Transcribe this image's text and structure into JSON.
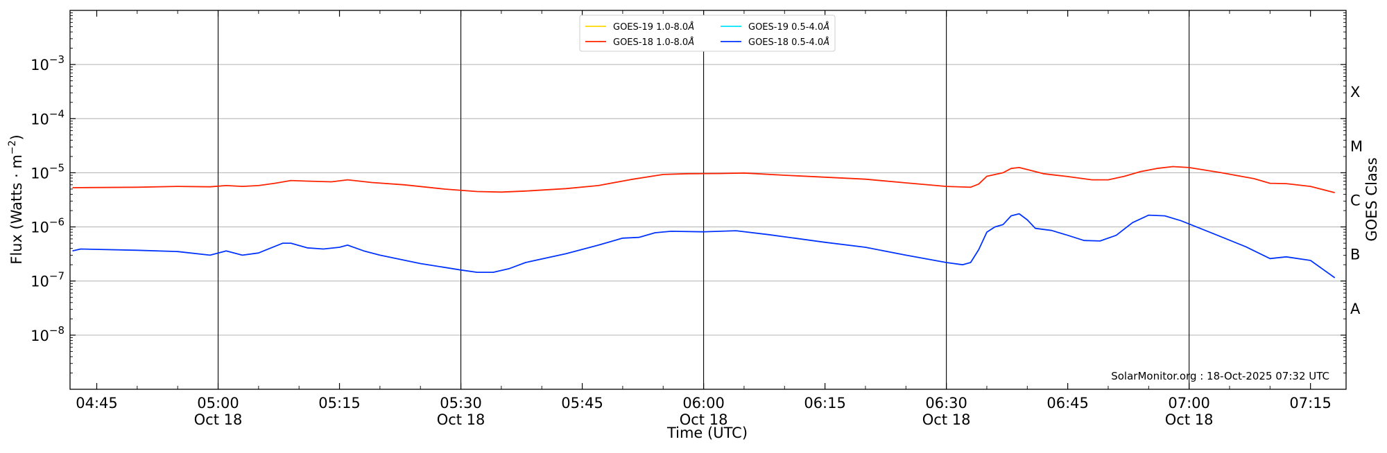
{
  "chart_data": {
    "type": "line",
    "title": "",
    "xlabel": "Time (UTC)",
    "ylabel": "Flux (Watts · m",
    "ylabel_superscript": "−2",
    "ylabel_suffix": ")",
    "y2label": "GOES Class",
    "yscale": "log",
    "ylim": [
      1e-09,
      0.01
    ],
    "xlim_minutes": [
      "04:42",
      "07:19"
    ],
    "grid": "horizontal major gridlines",
    "legend_position": "top-center",
    "x_ticks": [
      {
        "time": "04:45",
        "label": "04:45",
        "date": ""
      },
      {
        "time": "05:00",
        "label": "05:00",
        "date": "Oct 18"
      },
      {
        "time": "05:15",
        "label": "05:15",
        "date": ""
      },
      {
        "time": "05:30",
        "label": "05:30",
        "date": "Oct 18"
      },
      {
        "time": "05:45",
        "label": "05:45",
        "date": ""
      },
      {
        "time": "06:00",
        "label": "06:00",
        "date": "Oct 18"
      },
      {
        "time": "06:15",
        "label": "06:15",
        "date": ""
      },
      {
        "time": "06:30",
        "label": "06:30",
        "date": "Oct 18"
      },
      {
        "time": "06:45",
        "label": "06:45",
        "date": ""
      },
      {
        "time": "07:00",
        "label": "07:00",
        "date": "Oct 18"
      },
      {
        "time": "07:15",
        "label": "07:15",
        "date": ""
      }
    ],
    "vertical_lines": [
      "05:00",
      "05:30",
      "06:00",
      "06:30",
      "07:00"
    ],
    "y_ticks": [
      {
        "value": 1e-08,
        "base": "10",
        "exp": "−8"
      },
      {
        "value": 1e-07,
        "base": "10",
        "exp": "−7"
      },
      {
        "value": 1e-06,
        "base": "10",
        "exp": "−6"
      },
      {
        "value": 1e-05,
        "base": "10",
        "exp": "−5"
      },
      {
        "value": 0.0001,
        "base": "10",
        "exp": "−4"
      },
      {
        "value": 0.001,
        "base": "10",
        "exp": "−3"
      }
    ],
    "goes_classes": [
      {
        "label": "A",
        "value": 3.16e-08
      },
      {
        "label": "B",
        "value": 3.16e-07
      },
      {
        "label": "C",
        "value": 3.16e-06
      },
      {
        "label": "M",
        "value": 3.16e-05
      },
      {
        "label": "X",
        "value": 0.000316
      }
    ],
    "legend": [
      {
        "name": "GOES-19 1.0-8.0",
        "unit": "Å",
        "color": "#FFD700"
      },
      {
        "name": "GOES-18 1.0-8.0",
        "unit": "Å",
        "color": "#FF2200"
      },
      {
        "name": "GOES-19 0.5-4.0",
        "unit": "Å",
        "color": "#00E5FF"
      },
      {
        "name": "GOES-18 0.5-4.0",
        "unit": "Å",
        "color": "#0033FF"
      }
    ],
    "series": [
      {
        "name": "GOES-18 1.0-8.0Å",
        "color": "#FF2200",
        "points": [
          [
            "04:42",
            5.3e-06
          ],
          [
            "04:50",
            5.4e-06
          ],
          [
            "04:55",
            5.6e-06
          ],
          [
            "04:59",
            5.5e-06
          ],
          [
            "05:01",
            5.8e-06
          ],
          [
            "05:03",
            5.6e-06
          ],
          [
            "05:05",
            5.8e-06
          ],
          [
            "05:07",
            6.4e-06
          ],
          [
            "05:09",
            7.2e-06
          ],
          [
            "05:11",
            7e-06
          ],
          [
            "05:14",
            6.8e-06
          ],
          [
            "05:16",
            7.4e-06
          ],
          [
            "05:19",
            6.6e-06
          ],
          [
            "05:23",
            6e-06
          ],
          [
            "05:28",
            5e-06
          ],
          [
            "05:32",
            4.5e-06
          ],
          [
            "05:35",
            4.4e-06
          ],
          [
            "05:38",
            4.6e-06
          ],
          [
            "05:43",
            5.1e-06
          ],
          [
            "05:47",
            5.8e-06
          ],
          [
            "05:51",
            7.5e-06
          ],
          [
            "05:55",
            9.3e-06
          ],
          [
            "05:58",
            9.6e-06
          ],
          [
            "06:02",
            9.7e-06
          ],
          [
            "06:05",
            9.9e-06
          ],
          [
            "06:10",
            9e-06
          ],
          [
            "06:15",
            8.3e-06
          ],
          [
            "06:20",
            7.6e-06
          ],
          [
            "06:25",
            6.5e-06
          ],
          [
            "06:30",
            5.6e-06
          ],
          [
            "06:33",
            5.4e-06
          ],
          [
            "06:34",
            6.2e-06
          ],
          [
            "06:35",
            8.6e-06
          ],
          [
            "06:37",
            1e-05
          ],
          [
            "06:38",
            1.2e-05
          ],
          [
            "06:39",
            1.25e-05
          ],
          [
            "06:40",
            1.15e-05
          ],
          [
            "06:42",
            9.6e-06
          ],
          [
            "06:45",
            8.5e-06
          ],
          [
            "06:48",
            7.4e-06
          ],
          [
            "06:50",
            7.4e-06
          ],
          [
            "06:52",
            8.6e-06
          ],
          [
            "06:54",
            1.05e-05
          ],
          [
            "06:56",
            1.2e-05
          ],
          [
            "06:58",
            1.3e-05
          ],
          [
            "07:00",
            1.25e-05
          ],
          [
            "07:04",
            1e-05
          ],
          [
            "07:08",
            7.8e-06
          ],
          [
            "07:10",
            6.4e-06
          ],
          [
            "07:12",
            6.3e-06
          ],
          [
            "07:15",
            5.6e-06
          ],
          [
            "07:18",
            4.3e-06
          ]
        ]
      },
      {
        "name": "GOES-18 0.5-4.0Å",
        "color": "#0033FF",
        "points": [
          [
            "04:42",
            3.6e-07
          ],
          [
            "04:43",
            3.9e-07
          ],
          [
            "04:50",
            3.7e-07
          ],
          [
            "04:55",
            3.5e-07
          ],
          [
            "04:59",
            3e-07
          ],
          [
            "05:01",
            3.6e-07
          ],
          [
            "05:03",
            3e-07
          ],
          [
            "05:05",
            3.3e-07
          ],
          [
            "05:06",
            3.8e-07
          ],
          [
            "05:08",
            5e-07
          ],
          [
            "05:09",
            5e-07
          ],
          [
            "05:11",
            4.1e-07
          ],
          [
            "05:13",
            3.9e-07
          ],
          [
            "05:15",
            4.2e-07
          ],
          [
            "05:16",
            4.6e-07
          ],
          [
            "05:18",
            3.6e-07
          ],
          [
            "05:20",
            3e-07
          ],
          [
            "05:25",
            2.1e-07
          ],
          [
            "05:30",
            1.6e-07
          ],
          [
            "05:32",
            1.45e-07
          ],
          [
            "05:34",
            1.45e-07
          ],
          [
            "05:36",
            1.7e-07
          ],
          [
            "05:38",
            2.2e-07
          ],
          [
            "05:43",
            3.2e-07
          ],
          [
            "05:47",
            4.6e-07
          ],
          [
            "05:50",
            6.2e-07
          ],
          [
            "05:52",
            6.4e-07
          ],
          [
            "05:54",
            7.8e-07
          ],
          [
            "05:56",
            8.3e-07
          ],
          [
            "06:00",
            8.1e-07
          ],
          [
            "06:04",
            8.5e-07
          ],
          [
            "06:08",
            7.2e-07
          ],
          [
            "06:15",
            5.2e-07
          ],
          [
            "06:20",
            4.2e-07
          ],
          [
            "06:25",
            3e-07
          ],
          [
            "06:30",
            2.2e-07
          ],
          [
            "06:32",
            2e-07
          ],
          [
            "06:33",
            2.2e-07
          ],
          [
            "06:34",
            3.8e-07
          ],
          [
            "06:35",
            8e-07
          ],
          [
            "06:36",
            1e-06
          ],
          [
            "06:37",
            1.1e-06
          ],
          [
            "06:38",
            1.6e-06
          ],
          [
            "06:39",
            1.75e-06
          ],
          [
            "06:40",
            1.35e-06
          ],
          [
            "06:41",
            9.4e-07
          ],
          [
            "06:43",
            8.6e-07
          ],
          [
            "06:45",
            7e-07
          ],
          [
            "06:47",
            5.6e-07
          ],
          [
            "06:49",
            5.5e-07
          ],
          [
            "06:51",
            7e-07
          ],
          [
            "06:53",
            1.2e-06
          ],
          [
            "06:55",
            1.65e-06
          ],
          [
            "06:57",
            1.6e-06
          ],
          [
            "06:59",
            1.3e-06
          ],
          [
            "07:03",
            7.5e-07
          ],
          [
            "07:07",
            4.3e-07
          ],
          [
            "07:10",
            2.6e-07
          ],
          [
            "07:12",
            2.8e-07
          ],
          [
            "07:15",
            2.4e-07
          ],
          [
            "07:18",
            1.15e-07
          ]
        ]
      }
    ],
    "annotation": "SolarMonitor.org : 18-Oct-2025 07:32 UTC"
  }
}
